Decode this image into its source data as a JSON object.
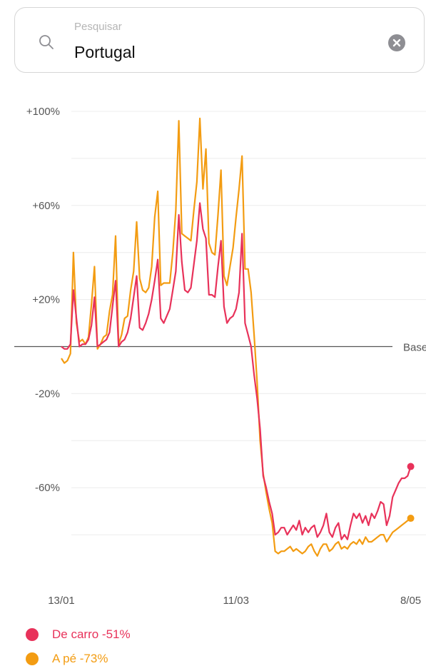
{
  "search": {
    "placeholder": "Pesquisar",
    "value": "Portugal",
    "search_icon": "search-icon",
    "clear_icon": "clear-icon"
  },
  "colors": {
    "driving": "#e8325a",
    "walking": "#f39c12",
    "grid": "#ececec",
    "baseline": "#555555",
    "tick": "#555555"
  },
  "chart_data": {
    "type": "line",
    "baseline_label": "Base",
    "ylim": [
      -100,
      100
    ],
    "y_ticks": [
      100,
      60,
      20,
      -20,
      -60
    ],
    "y_tick_labels": [
      "+100%",
      "+60%",
      "+20%",
      "-20%",
      "-60%"
    ],
    "y_gridlines": [
      100,
      80,
      60,
      40,
      20,
      -20,
      -40,
      -60,
      -80
    ],
    "x_range": [
      "2020-01-13",
      "2020-05-10"
    ],
    "x_ticks": [
      "2020-01-13",
      "2020-03-11",
      "2020-05-08"
    ],
    "x_tick_labels": [
      "13/01",
      "11/03",
      "8/05"
    ],
    "series": [
      {
        "name": "De carro -51%",
        "key": "driving",
        "last_value": -51,
        "points": [
          [
            "2020-01-13",
            0
          ],
          [
            "2020-01-14",
            -1
          ],
          [
            "2020-01-15",
            -1
          ],
          [
            "2020-01-16",
            1
          ],
          [
            "2020-01-17",
            24
          ],
          [
            "2020-01-18",
            12
          ],
          [
            "2020-01-19",
            0
          ],
          [
            "2020-01-20",
            1
          ],
          [
            "2020-01-21",
            1
          ],
          [
            "2020-01-22",
            3
          ],
          [
            "2020-01-23",
            9
          ],
          [
            "2020-01-24",
            21
          ],
          [
            "2020-01-25",
            0
          ],
          [
            "2020-01-26",
            1
          ],
          [
            "2020-01-27",
            2
          ],
          [
            "2020-01-28",
            3
          ],
          [
            "2020-01-29",
            6
          ],
          [
            "2020-01-30",
            17
          ],
          [
            "2020-01-31",
            28
          ],
          [
            "2020-02-01",
            0
          ],
          [
            "2020-02-02",
            2
          ],
          [
            "2020-02-03",
            3
          ],
          [
            "2020-02-04",
            6
          ],
          [
            "2020-02-05",
            12
          ],
          [
            "2020-02-06",
            21
          ],
          [
            "2020-02-07",
            30
          ],
          [
            "2020-02-08",
            8
          ],
          [
            "2020-02-09",
            7
          ],
          [
            "2020-02-10",
            10
          ],
          [
            "2020-02-11",
            14
          ],
          [
            "2020-02-12",
            20
          ],
          [
            "2020-02-13",
            28
          ],
          [
            "2020-02-14",
            37
          ],
          [
            "2020-02-15",
            12
          ],
          [
            "2020-02-16",
            10
          ],
          [
            "2020-02-17",
            13
          ],
          [
            "2020-02-18",
            16
          ],
          [
            "2020-02-19",
            24
          ],
          [
            "2020-02-20",
            32
          ],
          [
            "2020-02-21",
            56
          ],
          [
            "2020-02-22",
            36
          ],
          [
            "2020-02-23",
            24
          ],
          [
            "2020-02-24",
            23
          ],
          [
            "2020-02-25",
            25
          ],
          [
            "2020-02-26",
            35
          ],
          [
            "2020-02-27",
            45
          ],
          [
            "2020-02-28",
            61
          ],
          [
            "2020-02-29",
            50
          ],
          [
            "2020-03-01",
            46
          ],
          [
            "2020-03-02",
            22
          ],
          [
            "2020-03-03",
            22
          ],
          [
            "2020-03-04",
            21
          ],
          [
            "2020-03-05",
            34
          ],
          [
            "2020-03-06",
            45
          ],
          [
            "2020-03-07",
            17
          ],
          [
            "2020-03-08",
            10
          ],
          [
            "2020-03-09",
            12
          ],
          [
            "2020-03-10",
            13
          ],
          [
            "2020-03-11",
            16
          ],
          [
            "2020-03-12",
            23
          ],
          [
            "2020-03-13",
            48
          ],
          [
            "2020-03-14",
            10
          ],
          [
            "2020-03-15",
            5
          ],
          [
            "2020-03-16",
            0
          ],
          [
            "2020-03-17",
            -12
          ],
          [
            "2020-03-18",
            -22
          ],
          [
            "2020-03-19",
            -35
          ],
          [
            "2020-03-20",
            -55
          ],
          [
            "2020-03-21",
            -60
          ],
          [
            "2020-03-22",
            -66
          ],
          [
            "2020-03-23",
            -71
          ],
          [
            "2020-03-24",
            -80
          ],
          [
            "2020-03-25",
            -79
          ],
          [
            "2020-03-26",
            -77
          ],
          [
            "2020-03-27",
            -77
          ],
          [
            "2020-03-28",
            -80
          ],
          [
            "2020-03-29",
            -78
          ],
          [
            "2020-03-30",
            -76
          ],
          [
            "2020-03-31",
            -78
          ],
          [
            "2020-04-01",
            -74
          ],
          [
            "2020-04-02",
            -80
          ],
          [
            "2020-04-03",
            -77
          ],
          [
            "2020-04-04",
            -79
          ],
          [
            "2020-04-05",
            -77
          ],
          [
            "2020-04-06",
            -76
          ],
          [
            "2020-04-07",
            -81
          ],
          [
            "2020-04-08",
            -79
          ],
          [
            "2020-04-09",
            -76
          ],
          [
            "2020-04-10",
            -71
          ],
          [
            "2020-04-11",
            -79
          ],
          [
            "2020-04-12",
            -81
          ],
          [
            "2020-04-13",
            -77
          ],
          [
            "2020-04-14",
            -75
          ],
          [
            "2020-04-15",
            -82
          ],
          [
            "2020-04-16",
            -80
          ],
          [
            "2020-04-17",
            -82
          ],
          [
            "2020-04-18",
            -76
          ],
          [
            "2020-04-19",
            -71
          ],
          [
            "2020-04-20",
            -73
          ],
          [
            "2020-04-21",
            -71
          ],
          [
            "2020-04-22",
            -75
          ],
          [
            "2020-04-23",
            -72
          ],
          [
            "2020-04-24",
            -76
          ],
          [
            "2020-04-25",
            -71
          ],
          [
            "2020-04-26",
            -73
          ],
          [
            "2020-04-27",
            -70
          ],
          [
            "2020-04-28",
            -66
          ],
          [
            "2020-04-29",
            -67
          ],
          [
            "2020-04-30",
            -76
          ],
          [
            "2020-05-01",
            -72
          ],
          [
            "2020-05-02",
            -64
          ],
          [
            "2020-05-03",
            -61
          ],
          [
            "2020-05-04",
            -58
          ],
          [
            "2020-05-05",
            -56
          ],
          [
            "2020-05-06",
            -56
          ],
          [
            "2020-05-07",
            -55
          ],
          [
            "2020-05-08",
            -51
          ]
        ]
      },
      {
        "name": "A pé -73%",
        "key": "walking",
        "last_value": -73,
        "points": [
          [
            "2020-01-13",
            -5
          ],
          [
            "2020-01-14",
            -7
          ],
          [
            "2020-01-15",
            -6
          ],
          [
            "2020-01-16",
            -3
          ],
          [
            "2020-01-17",
            40
          ],
          [
            "2020-01-18",
            10
          ],
          [
            "2020-01-19",
            2
          ],
          [
            "2020-01-20",
            3
          ],
          [
            "2020-01-21",
            1
          ],
          [
            "2020-01-22",
            4
          ],
          [
            "2020-01-23",
            18
          ],
          [
            "2020-01-24",
            34
          ],
          [
            "2020-01-25",
            -1
          ],
          [
            "2020-01-26",
            1
          ],
          [
            "2020-01-27",
            4
          ],
          [
            "2020-01-28",
            5
          ],
          [
            "2020-01-29",
            15
          ],
          [
            "2020-01-30",
            22
          ],
          [
            "2020-01-31",
            47
          ],
          [
            "2020-02-01",
            1
          ],
          [
            "2020-02-02",
            5
          ],
          [
            "2020-02-03",
            12
          ],
          [
            "2020-02-04",
            13
          ],
          [
            "2020-02-05",
            24
          ],
          [
            "2020-02-06",
            32
          ],
          [
            "2020-02-07",
            53
          ],
          [
            "2020-02-08",
            29
          ],
          [
            "2020-02-09",
            24
          ],
          [
            "2020-02-10",
            23
          ],
          [
            "2020-02-11",
            25
          ],
          [
            "2020-02-12",
            34
          ],
          [
            "2020-02-13",
            55
          ],
          [
            "2020-02-14",
            66
          ],
          [
            "2020-02-15",
            26
          ],
          [
            "2020-02-16",
            27
          ],
          [
            "2020-02-17",
            27
          ],
          [
            "2020-02-18",
            27
          ],
          [
            "2020-02-19",
            40
          ],
          [
            "2020-02-20",
            58
          ],
          [
            "2020-02-21",
            96
          ],
          [
            "2020-02-22",
            48
          ],
          [
            "2020-02-23",
            47
          ],
          [
            "2020-02-24",
            46
          ],
          [
            "2020-02-25",
            45
          ],
          [
            "2020-02-26",
            58
          ],
          [
            "2020-02-27",
            70
          ],
          [
            "2020-02-28",
            97
          ],
          [
            "2020-02-29",
            67
          ],
          [
            "2020-03-01",
            84
          ],
          [
            "2020-03-02",
            44
          ],
          [
            "2020-03-03",
            40
          ],
          [
            "2020-03-04",
            39
          ],
          [
            "2020-03-05",
            56
          ],
          [
            "2020-03-06",
            75
          ],
          [
            "2020-03-07",
            30
          ],
          [
            "2020-03-08",
            26
          ],
          [
            "2020-03-09",
            34
          ],
          [
            "2020-03-10",
            42
          ],
          [
            "2020-03-11",
            55
          ],
          [
            "2020-03-12",
            67
          ],
          [
            "2020-03-13",
            81
          ],
          [
            "2020-03-14",
            33
          ],
          [
            "2020-03-15",
            33
          ],
          [
            "2020-03-16",
            23
          ],
          [
            "2020-03-17",
            5
          ],
          [
            "2020-03-18",
            -15
          ],
          [
            "2020-03-19",
            -40
          ],
          [
            "2020-03-20",
            -54
          ],
          [
            "2020-03-21",
            -62
          ],
          [
            "2020-03-22",
            -69
          ],
          [
            "2020-03-23",
            -75
          ],
          [
            "2020-03-24",
            -87
          ],
          [
            "2020-03-25",
            -88
          ],
          [
            "2020-03-26",
            -87
          ],
          [
            "2020-03-27",
            -87
          ],
          [
            "2020-03-28",
            -86
          ],
          [
            "2020-03-29",
            -85
          ],
          [
            "2020-03-30",
            -87
          ],
          [
            "2020-03-31",
            -86
          ],
          [
            "2020-04-01",
            -87
          ],
          [
            "2020-04-02",
            -88
          ],
          [
            "2020-04-03",
            -87
          ],
          [
            "2020-04-04",
            -85
          ],
          [
            "2020-04-05",
            -84
          ],
          [
            "2020-04-06",
            -87
          ],
          [
            "2020-04-07",
            -89
          ],
          [
            "2020-04-08",
            -86
          ],
          [
            "2020-04-09",
            -84
          ],
          [
            "2020-04-10",
            -84
          ],
          [
            "2020-04-11",
            -87
          ],
          [
            "2020-04-12",
            -86
          ],
          [
            "2020-04-13",
            -84
          ],
          [
            "2020-04-14",
            -83
          ],
          [
            "2020-04-15",
            -86
          ],
          [
            "2020-04-16",
            -85
          ],
          [
            "2020-04-17",
            -86
          ],
          [
            "2020-04-18",
            -84
          ],
          [
            "2020-04-19",
            -83
          ],
          [
            "2020-04-20",
            -84
          ],
          [
            "2020-04-21",
            -82
          ],
          [
            "2020-04-22",
            -84
          ],
          [
            "2020-04-23",
            -81
          ],
          [
            "2020-04-24",
            -83
          ],
          [
            "2020-04-25",
            -83
          ],
          [
            "2020-04-26",
            -82
          ],
          [
            "2020-04-27",
            -81
          ],
          [
            "2020-04-28",
            -80
          ],
          [
            "2020-04-29",
            -80
          ],
          [
            "2020-04-30",
            -83
          ],
          [
            "2020-05-01",
            -81
          ],
          [
            "2020-05-02",
            -79
          ],
          [
            "2020-05-03",
            -78
          ],
          [
            "2020-05-04",
            -77
          ],
          [
            "2020-05-05",
            -76
          ],
          [
            "2020-05-06",
            -75
          ],
          [
            "2020-05-07",
            -74
          ],
          [
            "2020-05-08",
            -73
          ]
        ]
      }
    ]
  }
}
